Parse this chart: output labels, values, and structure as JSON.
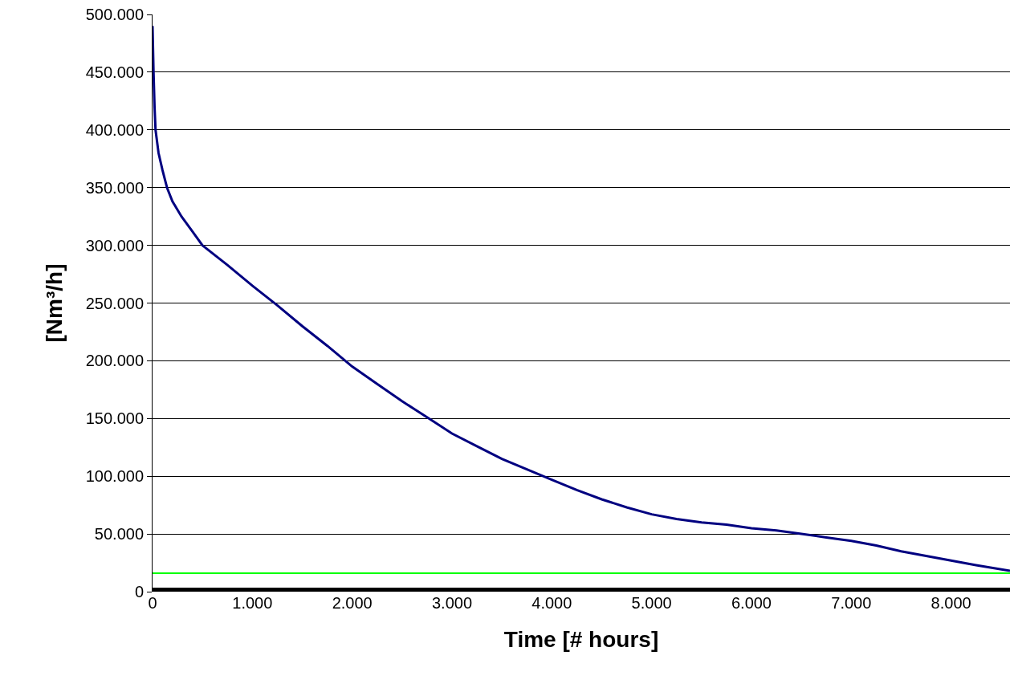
{
  "chart_data": {
    "type": "line",
    "xlabel": "Time [# hours]",
    "ylabel": "[Nm³/h]",
    "xlim": [
      0,
      8590
    ],
    "ylim": [
      0,
      500000
    ],
    "xticks": [
      0,
      {
        "value": 1000,
        "label": "1.000"
      },
      {
        "value": 2000,
        "label": "2.000"
      },
      {
        "value": 3000,
        "label": "3.000"
      },
      {
        "value": 4000,
        "label": "4.000"
      },
      {
        "value": 5000,
        "label": "5.000"
      },
      {
        "value": 6000,
        "label": "6.000"
      },
      {
        "value": 7000,
        "label": "7.000"
      },
      {
        "value": 8000,
        "label": "8.000"
      }
    ],
    "yticks": [
      0,
      {
        "value": 50000,
        "label": "50.000"
      },
      {
        "value": 100000,
        "label": "100.000"
      },
      {
        "value": 150000,
        "label": "150.000"
      },
      {
        "value": 200000,
        "label": "200.000"
      },
      {
        "value": 250000,
        "label": "250.000"
      },
      {
        "value": 300000,
        "label": "300.000"
      },
      {
        "value": 350000,
        "label": "350.000"
      },
      {
        "value": 400000,
        "label": "400.000"
      },
      {
        "value": 450000,
        "label": "450.000"
      },
      {
        "value": 500000,
        "label": "500.000"
      }
    ],
    "grid": "y",
    "marker": "none",
    "line_style": "solid",
    "series": [
      {
        "color": "#000080",
        "x": [
          0,
          10,
          20,
          30,
          60,
          100,
          145,
          200,
          290,
          400,
          500,
          750,
          1000,
          1250,
          1500,
          1750,
          2000,
          2250,
          2500,
          2750,
          3000,
          3250,
          3500,
          3750,
          4000,
          4250,
          4500,
          4750,
          5000,
          5250,
          5500,
          5750,
          6000,
          6250,
          6500,
          6750,
          7000,
          7250,
          7500,
          7750,
          8000,
          8250,
          8590
        ],
        "values": [
          490000,
          450000,
          420000,
          400000,
          380000,
          365000,
          350000,
          338000,
          325000,
          312000,
          300000,
          283000,
          265000,
          248000,
          230000,
          213000,
          195000,
          180000,
          165000,
          151000,
          137000,
          126000,
          115000,
          106000,
          97000,
          88000,
          80000,
          73000,
          67000,
          63000,
          60000,
          58000,
          55000,
          53000,
          50000,
          47000,
          44000,
          40000,
          35000,
          31000,
          27000,
          23000,
          18000
        ]
      },
      {
        "color": "#00ff00",
        "x": [
          0,
          8590
        ],
        "values": [
          16000,
          16000
        ]
      },
      {
        "color": "#000000",
        "x": [
          0,
          8590
        ],
        "values": [
          0,
          0
        ]
      }
    ]
  }
}
